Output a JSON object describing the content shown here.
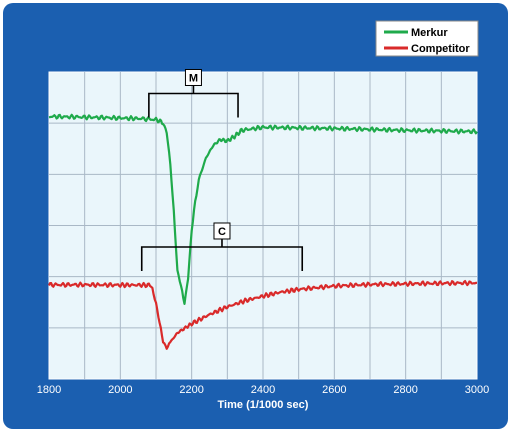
{
  "chart_data": {
    "type": "line",
    "title": "",
    "xlabel": "Time (1/1000 sec)",
    "ylabel": "",
    "xlim": [
      1800,
      3000
    ],
    "ylim": [
      0,
      1
    ],
    "x_ticks": [
      1800,
      2000,
      2200,
      2400,
      2600,
      2800,
      3000
    ],
    "grid": true,
    "legend_position": "top-right",
    "series": [
      {
        "name": "Merkur",
        "color": "#1faa4b",
        "points": [
          [
            1800,
            0.855
          ],
          [
            1900,
            0.853
          ],
          [
            2000,
            0.85
          ],
          [
            2060,
            0.848
          ],
          [
            2100,
            0.845
          ],
          [
            2120,
            0.835
          ],
          [
            2130,
            0.8
          ],
          [
            2140,
            0.7
          ],
          [
            2150,
            0.55
          ],
          [
            2160,
            0.35
          ],
          [
            2170,
            0.3
          ],
          [
            2180,
            0.25
          ],
          [
            2190,
            0.33
          ],
          [
            2200,
            0.48
          ],
          [
            2210,
            0.58
          ],
          [
            2220,
            0.65
          ],
          [
            2240,
            0.72
          ],
          [
            2260,
            0.76
          ],
          [
            2280,
            0.78
          ],
          [
            2300,
            0.775
          ],
          [
            2320,
            0.79
          ],
          [
            2340,
            0.81
          ],
          [
            2400,
            0.82
          ],
          [
            2500,
            0.818
          ],
          [
            2600,
            0.816
          ],
          [
            2700,
            0.813
          ],
          [
            2800,
            0.81
          ],
          [
            2900,
            0.808
          ],
          [
            3000,
            0.806
          ]
        ]
      },
      {
        "name": "Competitor",
        "color": "#d92a2a",
        "points": [
          [
            1800,
            0.307
          ],
          [
            1900,
            0.307
          ],
          [
            2000,
            0.306
          ],
          [
            2080,
            0.306
          ],
          [
            2090,
            0.295
          ],
          [
            2100,
            0.25
          ],
          [
            2110,
            0.18
          ],
          [
            2120,
            0.12
          ],
          [
            2130,
            0.105
          ],
          [
            2140,
            0.12
          ],
          [
            2160,
            0.15
          ],
          [
            2180,
            0.165
          ],
          [
            2200,
            0.18
          ],
          [
            2250,
            0.21
          ],
          [
            2300,
            0.235
          ],
          [
            2350,
            0.255
          ],
          [
            2400,
            0.27
          ],
          [
            2450,
            0.283
          ],
          [
            2500,
            0.292
          ],
          [
            2600,
            0.303
          ],
          [
            2700,
            0.308
          ],
          [
            2800,
            0.31
          ],
          [
            2900,
            0.312
          ],
          [
            3000,
            0.313
          ]
        ]
      }
    ],
    "annotations": [
      {
        "label": "M",
        "from": 2080,
        "to": 2330,
        "level": 0.93
      },
      {
        "label": "C",
        "from": 2060,
        "to": 2510,
        "level": 0.43
      }
    ]
  }
}
